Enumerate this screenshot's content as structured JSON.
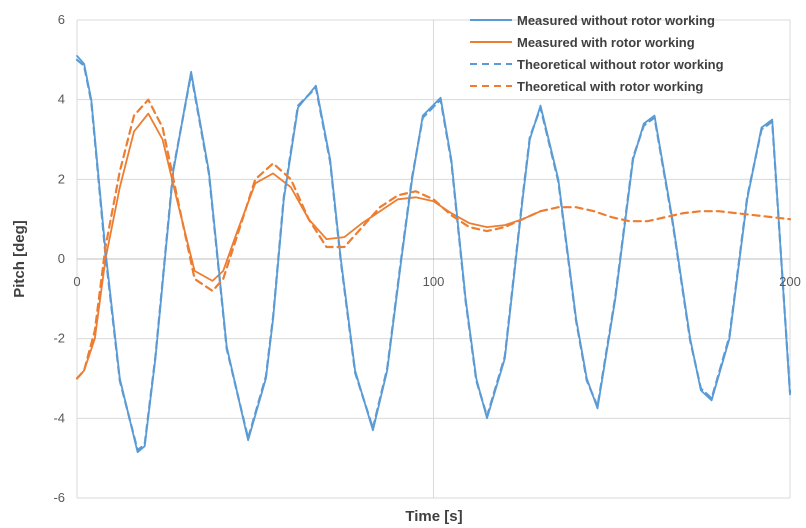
{
  "chart_data": {
    "type": "line",
    "xlabel": "Time [s]",
    "ylabel": "Pitch [deg]",
    "xlim": [
      0,
      200
    ],
    "ylim": [
      -6,
      6
    ],
    "x_ticks": [
      0,
      100,
      200
    ],
    "y_ticks": [
      -6,
      -4,
      -2,
      0,
      2,
      4,
      6
    ],
    "grid": true,
    "legend_position": "top-right",
    "series": [
      {
        "name": "Measured without rotor working",
        "color": "#5B9BD5",
        "style": "solid",
        "x": [
          0,
          2,
          4,
          8,
          12,
          17,
          19,
          22,
          27,
          32,
          37,
          42,
          48,
          53,
          55,
          58,
          62,
          67,
          71,
          74,
          78,
          83,
          87,
          91,
          94,
          97,
          102,
          105,
          109,
          112,
          115,
          120,
          125,
          127,
          130,
          135,
          140,
          143,
          146,
          151,
          156,
          159,
          162,
          167,
          172,
          175,
          178,
          183,
          188,
          192,
          195,
          200
        ],
        "y": [
          5.1,
          4.9,
          4.0,
          0.2,
          -3.0,
          -4.85,
          -4.7,
          -2.5,
          2.2,
          4.7,
          2.2,
          -2.2,
          -4.55,
          -3.0,
          -1.5,
          1.5,
          3.8,
          4.35,
          2.5,
          0.0,
          -2.8,
          -4.3,
          -2.8,
          0.0,
          2.0,
          3.6,
          4.05,
          2.5,
          -1.0,
          -3.0,
          -4.0,
          -2.5,
          1.5,
          3.0,
          3.85,
          2.0,
          -1.5,
          -3.0,
          -3.75,
          -1.0,
          2.5,
          3.4,
          3.6,
          1.0,
          -2.0,
          -3.3,
          -3.55,
          -2.0,
          1.5,
          3.3,
          3.5,
          -3.4
        ]
      },
      {
        "name": "Measured with rotor working",
        "color": "#ED7D31",
        "style": "solid",
        "x": [
          0,
          2,
          5,
          8,
          12,
          16,
          20,
          24,
          28,
          33,
          38,
          41,
          45,
          50,
          55,
          60,
          65,
          70,
          75,
          80,
          85,
          90,
          95,
          100,
          105,
          110,
          115,
          120,
          125,
          130
        ],
        "y": [
          -3.0,
          -2.8,
          -2.0,
          0.0,
          1.8,
          3.2,
          3.65,
          3.0,
          1.5,
          -0.3,
          -0.55,
          -0.3,
          0.7,
          1.9,
          2.15,
          1.8,
          1.0,
          0.5,
          0.55,
          0.9,
          1.2,
          1.5,
          1.55,
          1.45,
          1.15,
          0.9,
          0.8,
          0.85,
          1.0,
          1.2
        ]
      },
      {
        "name": "Theoretical without rotor working",
        "color": "#5B9BD5",
        "style": "dashed",
        "x": [
          0,
          2,
          4,
          8,
          12,
          17,
          19,
          22,
          27,
          32,
          37,
          42,
          48,
          53,
          55,
          58,
          62,
          67,
          71,
          74,
          78,
          83,
          87,
          91,
          94,
          97,
          102,
          105,
          109,
          112,
          115,
          120,
          125,
          127,
          130,
          135,
          140,
          143,
          146,
          151,
          156,
          159,
          162,
          167,
          172,
          175,
          178,
          183,
          188,
          192,
          195,
          200
        ],
        "y": [
          5.0,
          4.85,
          3.95,
          0.1,
          -3.05,
          -4.8,
          -4.65,
          -2.45,
          2.25,
          4.65,
          2.15,
          -2.25,
          -4.5,
          -2.95,
          -1.45,
          1.55,
          3.85,
          4.3,
          2.45,
          -0.05,
          -2.85,
          -4.25,
          -2.75,
          0.05,
          2.05,
          3.55,
          4.0,
          2.45,
          -1.05,
          -3.05,
          -3.95,
          -2.45,
          1.55,
          3.05,
          3.8,
          1.95,
          -1.55,
          -3.05,
          -3.7,
          -0.95,
          2.55,
          3.35,
          3.55,
          0.95,
          -2.05,
          -3.25,
          -3.5,
          -1.95,
          1.55,
          3.25,
          3.45,
          -3.35
        ]
      },
      {
        "name": "Theoretical with rotor working",
        "color": "#ED7D31",
        "style": "dashed",
        "x": [
          0,
          2,
          5,
          8,
          12,
          16,
          20,
          24,
          28,
          33,
          38,
          41,
          45,
          50,
          55,
          60,
          65,
          70,
          75,
          80,
          85,
          90,
          95,
          100,
          105,
          110,
          115,
          120,
          125,
          130,
          135,
          140,
          145,
          150,
          155,
          160,
          165,
          170,
          175,
          180,
          185,
          190,
          195,
          200
        ],
        "y": [
          -3.0,
          -2.8,
          -1.8,
          0.3,
          2.2,
          3.6,
          4.0,
          3.3,
          1.6,
          -0.5,
          -0.8,
          -0.5,
          0.6,
          2.0,
          2.4,
          2.0,
          1.0,
          0.3,
          0.3,
          0.8,
          1.3,
          1.6,
          1.7,
          1.5,
          1.1,
          0.8,
          0.7,
          0.8,
          1.0,
          1.2,
          1.3,
          1.3,
          1.2,
          1.05,
          0.95,
          0.95,
          1.05,
          1.15,
          1.2,
          1.2,
          1.15,
          1.1,
          1.05,
          1.0
        ]
      }
    ]
  }
}
